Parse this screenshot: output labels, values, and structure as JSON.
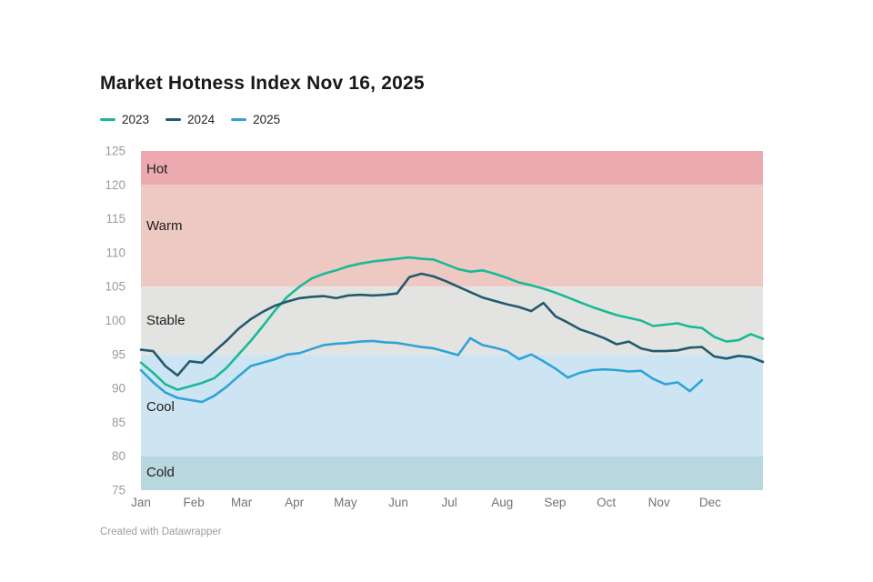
{
  "header": {
    "title": "Market Hotness Index Nov 16, 2025"
  },
  "footer": {
    "text": "Created with Datawrapper"
  },
  "chart_data": {
    "type": "line",
    "title": "Market Hotness Index Nov 16, 2025",
    "xlabel": "",
    "ylabel": "",
    "x_unit": "weekly",
    "x_tick_labels": [
      "Jan",
      "Feb",
      "Mar",
      "Apr",
      "May",
      "Jun",
      "Jul",
      "Aug",
      "Sep",
      "Oct",
      "Nov",
      "Dec"
    ],
    "month_start_day": [
      0,
      31,
      59,
      90,
      120,
      151,
      181,
      212,
      243,
      273,
      304,
      334
    ],
    "days_in_year": 365,
    "weeks_total": 52,
    "ylim": [
      75,
      125
    ],
    "y_ticks": [
      125,
      120,
      115,
      110,
      105,
      100,
      95,
      90,
      85,
      80,
      75
    ],
    "grid": false,
    "legend_position": "top-left",
    "text_colors": {
      "y_tick": "#9b9b9b",
      "x_tick": "#737373",
      "band_label": "#1d1d1d"
    },
    "bands": [
      {
        "label": "Hot",
        "from": 120,
        "to": 125,
        "color": "#ecaab0",
        "label_v": 122.4
      },
      {
        "label": "Warm",
        "from": 105,
        "to": 120,
        "color": "#eec9c3",
        "label_v": 114.0
      },
      {
        "label": "Stable",
        "from": 95,
        "to": 105,
        "color": "#e3e4e2",
        "label_v": 100.1
      },
      {
        "label": "Cool",
        "from": 80,
        "to": 95,
        "color": "#cde5f2",
        "label_v": 87.3
      },
      {
        "label": "Cold",
        "from": 75,
        "to": 80,
        "color": "#b9d7de",
        "label_v": 77.7
      }
    ],
    "series": [
      {
        "name": "2023",
        "color": "#1ab996",
        "values": [
          93.8,
          92.3,
          90.6,
          89.8,
          90.3,
          90.8,
          91.5,
          93.0,
          95.0,
          97.0,
          99.2,
          101.5,
          103.5,
          105.0,
          106.2,
          106.9,
          107.4,
          108.0,
          108.4,
          108.7,
          108.9,
          109.1,
          109.3,
          109.1,
          109.0,
          108.3,
          107.6,
          107.2,
          107.4,
          106.9,
          106.3,
          105.6,
          105.2,
          104.7,
          104.1,
          103.4,
          102.7,
          102.0,
          101.4,
          100.8,
          100.4,
          100.0,
          99.2,
          99.4,
          99.6,
          99.1,
          98.9,
          97.6,
          96.9,
          97.1,
          98.0,
          97.3
        ]
      },
      {
        "name": "2024",
        "color": "#235a6e",
        "values": [
          95.7,
          95.5,
          93.3,
          91.9,
          94.0,
          93.8,
          95.4,
          97.0,
          98.8,
          100.2,
          101.3,
          102.2,
          102.8,
          103.3,
          103.5,
          103.6,
          103.3,
          103.7,
          103.8,
          103.7,
          103.8,
          104.0,
          106.4,
          106.9,
          106.5,
          105.8,
          105.0,
          104.2,
          103.4,
          102.9,
          102.4,
          102.0,
          101.4,
          102.6,
          100.6,
          99.7,
          98.7,
          98.1,
          97.4,
          96.5,
          96.9,
          95.9,
          95.5,
          95.5,
          95.6,
          96.0,
          96.1,
          94.7,
          94.4,
          94.8,
          94.6,
          93.9
        ]
      },
      {
        "name": "2025",
        "color": "#2fa3d7",
        "values": [
          92.7,
          90.9,
          89.4,
          88.6,
          88.3,
          88.0,
          88.9,
          90.2,
          91.8,
          93.3,
          93.8,
          94.3,
          95.0,
          95.2,
          95.8,
          96.4,
          96.6,
          96.7,
          96.9,
          97.0,
          96.8,
          96.7,
          96.4,
          96.1,
          95.9,
          95.4,
          94.9,
          97.4,
          96.4,
          96.0,
          95.5,
          94.3,
          95.0,
          94.0,
          92.9,
          91.6,
          92.3,
          92.7,
          92.8,
          92.7,
          92.5,
          92.6,
          91.4,
          90.6,
          90.9,
          89.6,
          91.2
        ]
      }
    ]
  }
}
